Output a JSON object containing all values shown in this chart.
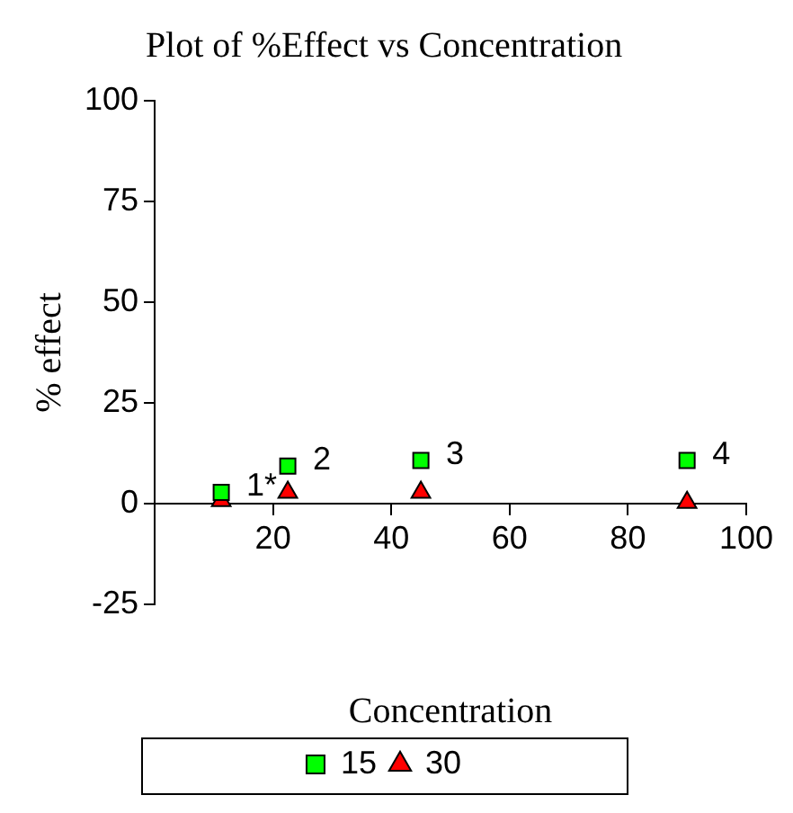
{
  "chart_data": {
    "type": "scatter",
    "title": "Plot of %Effect vs Concentration",
    "xlabel": "Concentration",
    "ylabel": "% effect",
    "x": [
      11.25,
      22.5,
      45,
      90
    ],
    "series": [
      {
        "name": "15",
        "color": "#00ff00",
        "marker": "square",
        "values": [
          2.8,
          9.3,
          10.7,
          10.7
        ]
      },
      {
        "name": "30",
        "color": "#ff0000",
        "marker": "triangle",
        "values": [
          0.7,
          2.8,
          2.8,
          0.3
        ]
      }
    ],
    "xlim": [
      0,
      100
    ],
    "xticks": [
      20,
      40,
      60,
      80,
      100
    ],
    "ylim": [
      -25,
      100
    ],
    "yticks": [
      -25,
      0,
      25,
      50,
      75,
      100
    ],
    "grid": false,
    "legend": "bottom",
    "annotations": [
      {
        "text": "1*",
        "x": 11.25,
        "y": 2.8
      },
      {
        "text": "2",
        "x": 22.5,
        "y": 9.3
      },
      {
        "text": "3",
        "x": 45,
        "y": 10.7
      },
      {
        "text": "4",
        "x": 90,
        "y": 10.7
      }
    ]
  }
}
